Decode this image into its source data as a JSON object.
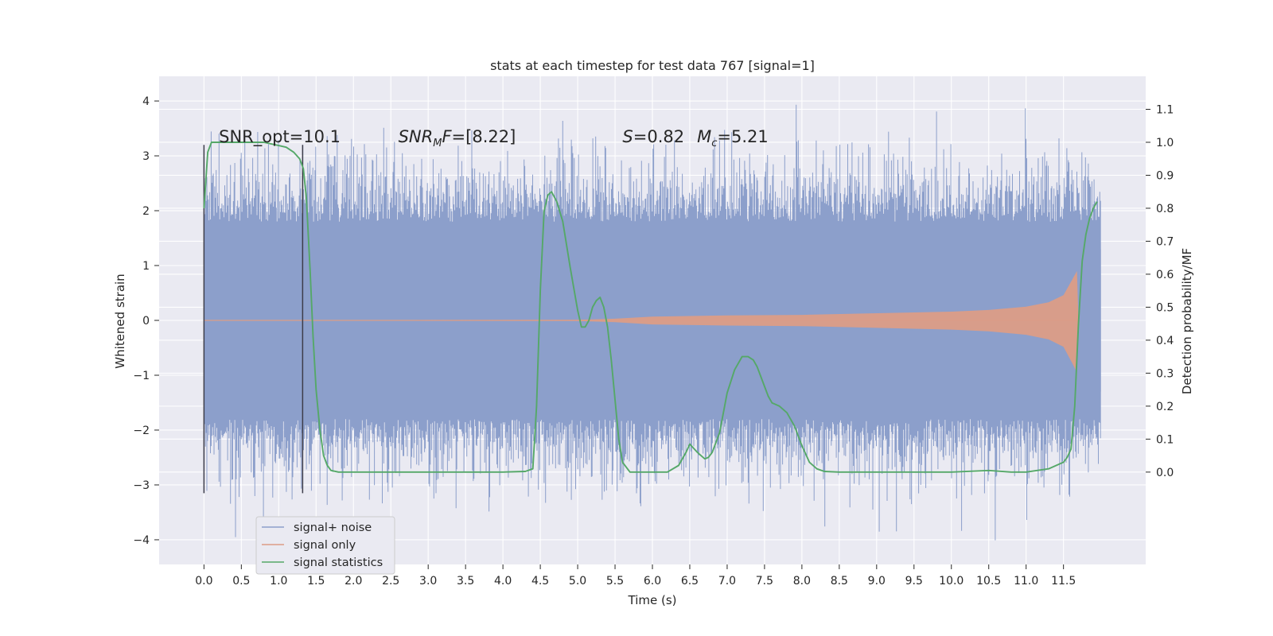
{
  "chart_data": {
    "type": "line",
    "title": "stats at each timestep for test data 767 [signal=1]",
    "xlabel": "Time (s)",
    "ylabel": "Whitened strain",
    "ylabel_right": "Detection probability/MF",
    "xlim": [
      -0.6,
      12.6
    ],
    "ylim": [
      -4.45,
      4.45
    ],
    "ylim_right": [
      -0.28,
      1.2
    ],
    "x_ticks": [
      "0.0",
      "0.5",
      "1.0",
      "1.5",
      "2.0",
      "2.5",
      "3.0",
      "3.5",
      "4.0",
      "4.5",
      "5.0",
      "5.5",
      "6.0",
      "6.5",
      "7.0",
      "7.5",
      "8.0",
      "8.5",
      "9.0",
      "9.5",
      "10.0",
      "10.5",
      "11.0",
      "11.5"
    ],
    "x_tick_values": [
      0,
      0.5,
      1,
      1.5,
      2,
      2.5,
      3,
      3.5,
      4,
      4.5,
      5,
      5.5,
      6,
      6.5,
      7,
      7.5,
      8,
      8.5,
      9,
      9.5,
      10,
      10.5,
      11,
      11.5
    ],
    "y_ticks": [
      "−4",
      "−3",
      "−2",
      "−1",
      "0",
      "1",
      "2",
      "3",
      "4"
    ],
    "y_tick_values": [
      -4,
      -3,
      -2,
      -1,
      0,
      1,
      2,
      3,
      4
    ],
    "y_ticks_right": [
      "0.0",
      "0.1",
      "0.2",
      "0.3",
      "0.4",
      "0.5",
      "0.6",
      "0.7",
      "0.8",
      "0.9",
      "1.0",
      "1.1"
    ],
    "y_tick_values_right": [
      0,
      0.1,
      0.2,
      0.3,
      0.4,
      0.5,
      0.6,
      0.7,
      0.8,
      0.9,
      1.0,
      1.1
    ],
    "noise": {
      "name": "signal+ noise",
      "t_start": 0.0,
      "t_end": 12.0,
      "band": 1.3,
      "typical_peak": 2.7,
      "max": 4.05,
      "min": -4.05,
      "color": "#8c9fcb"
    },
    "signal": {
      "name": "signal only",
      "amplitude_envelope": [
        {
          "t": 0.0,
          "a": 0.005
        },
        {
          "t": 5.0,
          "a": 0.01
        },
        {
          "t": 5.5,
          "a": 0.03
        },
        {
          "t": 6.0,
          "a": 0.07
        },
        {
          "t": 7.0,
          "a": 0.09
        },
        {
          "t": 8.0,
          "a": 0.1
        },
        {
          "t": 9.0,
          "a": 0.13
        },
        {
          "t": 10.0,
          "a": 0.16
        },
        {
          "t": 10.5,
          "a": 0.19
        },
        {
          "t": 11.0,
          "a": 0.25
        },
        {
          "t": 11.3,
          "a": 0.33
        },
        {
          "t": 11.5,
          "a": 0.46
        },
        {
          "t": 11.62,
          "a": 0.75
        },
        {
          "t": 11.68,
          "a": 0.9
        },
        {
          "t": 11.7,
          "a": 0.0
        }
      ],
      "color": "#dc9d86"
    },
    "series_stats": {
      "name": "signal statistics",
      "axis": "right",
      "color": "#55a868",
      "x": [
        0.0,
        0.05,
        0.1,
        0.15,
        0.2,
        0.3,
        0.5,
        0.8,
        1.0,
        1.1,
        1.2,
        1.28,
        1.33,
        1.37,
        1.42,
        1.46,
        1.5,
        1.55,
        1.6,
        1.65,
        1.7,
        1.8,
        2.0,
        3.0,
        4.0,
        4.3,
        4.4,
        4.45,
        4.5,
        4.55,
        4.6,
        4.65,
        4.72,
        4.8,
        4.9,
        5.0,
        5.05,
        5.1,
        5.15,
        5.2,
        5.25,
        5.3,
        5.35,
        5.4,
        5.45,
        5.5,
        5.55,
        5.6,
        5.7,
        5.75,
        5.8,
        5.85,
        5.9,
        6.0,
        6.2,
        6.35,
        6.45,
        6.5,
        6.6,
        6.65,
        6.7,
        6.75,
        6.8,
        6.9,
        7.0,
        7.1,
        7.2,
        7.28,
        7.35,
        7.4,
        7.5,
        7.55,
        7.6,
        7.7,
        7.8,
        7.9,
        8.0,
        8.1,
        8.2,
        8.3,
        8.5,
        9.0,
        10.0,
        10.5,
        10.8,
        11.0,
        11.3,
        11.5,
        11.55,
        11.6,
        11.65,
        11.7,
        11.75,
        11.8,
        11.85,
        11.9,
        11.95
      ],
      "values": [
        0.8,
        0.97,
        1.0,
        1.0,
        1.0,
        1.0,
        1.0,
        1.0,
        0.99,
        0.985,
        0.97,
        0.95,
        0.92,
        0.83,
        0.61,
        0.41,
        0.25,
        0.13,
        0.05,
        0.02,
        0.005,
        0.0,
        0.0,
        0.0,
        0.0,
        0.002,
        0.01,
        0.2,
        0.55,
        0.79,
        0.84,
        0.85,
        0.82,
        0.76,
        0.62,
        0.49,
        0.44,
        0.44,
        0.46,
        0.5,
        0.52,
        0.53,
        0.5,
        0.44,
        0.34,
        0.22,
        0.1,
        0.03,
        0.0,
        0.0,
        0.0,
        0.0,
        0.0,
        0.0,
        0.0,
        0.02,
        0.06,
        0.085,
        0.06,
        0.05,
        0.04,
        0.045,
        0.06,
        0.12,
        0.24,
        0.31,
        0.35,
        0.35,
        0.34,
        0.32,
        0.26,
        0.23,
        0.21,
        0.2,
        0.18,
        0.14,
        0.08,
        0.03,
        0.01,
        0.002,
        0.0,
        0.0,
        0.0,
        0.005,
        0.0,
        0.0,
        0.01,
        0.03,
        0.045,
        0.07,
        0.2,
        0.45,
        0.64,
        0.72,
        0.77,
        0.8,
        0.82
      ]
    },
    "vertical_markers": [
      {
        "t": 0.0,
        "y_from": -3.15,
        "y_to": 3.2
      },
      {
        "t": 1.32,
        "y_from": -3.15,
        "y_to": 3.2
      }
    ],
    "annotations": [
      {
        "t": 0.2,
        "y": 3.25,
        "text": "SNR_opt=10.1"
      },
      {
        "t": 2.6,
        "y": 3.25,
        "snr_base": "SNR",
        "snr_sub": "M",
        "snr_tail": "F",
        "snr_value": "=[8.22]"
      },
      {
        "t": 5.6,
        "y": 3.25,
        "s_symbol": "S",
        "s_value": "=0.82",
        "mc_base": "M",
        "mc_sub": "c",
        "mc_value": "=5.21"
      }
    ],
    "legend": {
      "position": "lower-left",
      "entries": [
        "signal+ noise",
        "signal only",
        "signal statistics"
      ]
    },
    "colors": {
      "plot_bg": "#eaeaf2",
      "grid": "#ffffff",
      "text": "#262626",
      "marker": "#3d3d4a"
    }
  }
}
